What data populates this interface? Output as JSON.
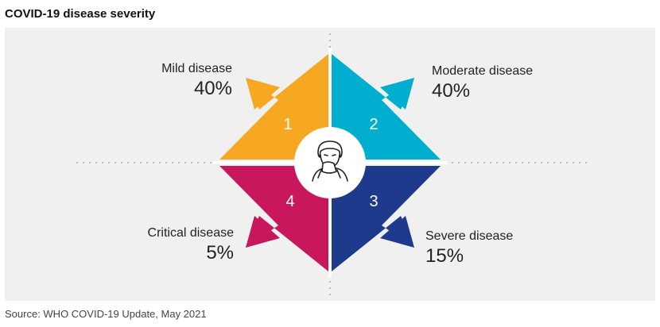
{
  "title": "COVID-19 disease severity",
  "source": "Source: WHO COVID-19 Update, May 2021",
  "center_icon": "person-sneezing-icon",
  "quadrants": [
    {
      "number": "1",
      "name": "Mild disease",
      "value": "40%",
      "color": "#f7a823"
    },
    {
      "number": "2",
      "name": "Moderate disease",
      "value": "40%",
      "color": "#00aed0"
    },
    {
      "number": "3",
      "name": "Severe disease",
      "value": "15%",
      "color": "#1e3a8c"
    },
    {
      "number": "4",
      "name": "Critical disease",
      "value": "5%",
      "color": "#c8175d"
    }
  ]
}
